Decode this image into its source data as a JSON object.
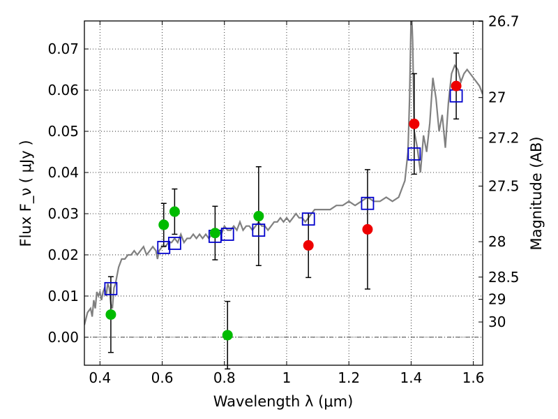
{
  "chart_data": {
    "type": "scatter",
    "xlabel": "Wavelength  λ (μm)",
    "ylabel": "Flux  F_ν  ( μJy )",
    "ylabel_right": "Magnitude (AB)",
    "xlim": [
      0.35,
      1.63
    ],
    "ylim": [
      -0.0068,
      0.0768
    ],
    "grid": true,
    "x_ticks": [
      0.4,
      0.6,
      0.8,
      1.0,
      1.2,
      1.4,
      1.6
    ],
    "x_tick_labels": [
      "0.4",
      "0.6",
      "0.8",
      "1",
      "1.2",
      "1.4",
      "1.6"
    ],
    "y_ticks": [
      0.0,
      0.01,
      0.02,
      0.03,
      0.04,
      0.05,
      0.06,
      0.07
    ],
    "y_tick_labels": [
      "0.00",
      "0.01",
      "0.02",
      "0.03",
      "0.04",
      "0.05",
      "0.06",
      "0.07"
    ],
    "right_ticks": [
      {
        "label": "26.7",
        "flux": 0.0767
      },
      {
        "label": "27",
        "flux": 0.0582
      },
      {
        "label": "27.2",
        "flux": 0.0484
      },
      {
        "label": "27.5",
        "flux": 0.0367
      },
      {
        "label": "28",
        "flux": 0.0232
      },
      {
        "label": "28.5",
        "flux": 0.0146
      },
      {
        "label": "29",
        "flux": 0.0092
      },
      {
        "label": "30",
        "flux": 0.0037
      }
    ],
    "colors": {
      "model": "#808080",
      "template_boxes": "#0000cc",
      "green_points": "#00bb00",
      "red_points": "#ee0000",
      "errorbars": "#000000"
    },
    "series": [
      {
        "key": "model_spectrum",
        "style": "line",
        "x": [
          0.35,
          0.36,
          0.37,
          0.375,
          0.38,
          0.385,
          0.39,
          0.395,
          0.4,
          0.405,
          0.41,
          0.415,
          0.42,
          0.425,
          0.43,
          0.435,
          0.44,
          0.445,
          0.45,
          0.455,
          0.46,
          0.47,
          0.48,
          0.49,
          0.5,
          0.51,
          0.52,
          0.53,
          0.54,
          0.55,
          0.56,
          0.57,
          0.58,
          0.585,
          0.59,
          0.6,
          0.61,
          0.62,
          0.63,
          0.64,
          0.65,
          0.66,
          0.67,
          0.68,
          0.69,
          0.7,
          0.71,
          0.72,
          0.73,
          0.74,
          0.75,
          0.76,
          0.77,
          0.78,
          0.79,
          0.8,
          0.81,
          0.82,
          0.83,
          0.84,
          0.85,
          0.86,
          0.87,
          0.88,
          0.89,
          0.9,
          0.91,
          0.92,
          0.93,
          0.94,
          0.95,
          0.96,
          0.97,
          0.98,
          0.99,
          1.0,
          1.01,
          1.02,
          1.03,
          1.04,
          1.05,
          1.06,
          1.07,
          1.08,
          1.09,
          1.1,
          1.12,
          1.14,
          1.16,
          1.18,
          1.2,
          1.22,
          1.24,
          1.26,
          1.28,
          1.3,
          1.32,
          1.34,
          1.36,
          1.37,
          1.38,
          1.39,
          1.395,
          1.4,
          1.402,
          1.405,
          1.41,
          1.415,
          1.42,
          1.43,
          1.44,
          1.45,
          1.46,
          1.47,
          1.48,
          1.49,
          1.5,
          1.51,
          1.52,
          1.53,
          1.54,
          1.55,
          1.56,
          1.57,
          1.58,
          1.59,
          1.6,
          1.61,
          1.62,
          1.63
        ],
        "y": [
          0.003,
          0.006,
          0.007,
          0.005,
          0.009,
          0.007,
          0.011,
          0.01,
          0.011,
          0.009,
          0.011,
          0.012,
          0.01,
          0.013,
          0.012,
          0.008,
          0.007,
          0.012,
          0.013,
          0.015,
          0.017,
          0.019,
          0.019,
          0.02,
          0.02,
          0.021,
          0.02,
          0.021,
          0.022,
          0.02,
          0.021,
          0.022,
          0.021,
          0.019,
          0.021,
          0.022,
          0.022,
          0.023,
          0.023,
          0.024,
          0.023,
          0.025,
          0.023,
          0.024,
          0.024,
          0.025,
          0.024,
          0.025,
          0.024,
          0.025,
          0.024,
          0.025,
          0.025,
          0.026,
          0.025,
          0.027,
          0.026,
          0.026,
          0.027,
          0.026,
          0.028,
          0.026,
          0.027,
          0.027,
          0.026,
          0.027,
          0.028,
          0.027,
          0.027,
          0.026,
          0.027,
          0.028,
          0.028,
          0.029,
          0.028,
          0.029,
          0.028,
          0.029,
          0.03,
          0.029,
          0.029,
          0.028,
          0.029,
          0.03,
          0.031,
          0.031,
          0.031,
          0.031,
          0.032,
          0.032,
          0.033,
          0.032,
          0.033,
          0.034,
          0.033,
          0.033,
          0.034,
          0.033,
          0.034,
          0.036,
          0.038,
          0.045,
          0.058,
          0.078,
          0.078,
          0.072,
          0.05,
          0.048,
          0.046,
          0.04,
          0.049,
          0.045,
          0.052,
          0.063,
          0.058,
          0.05,
          0.054,
          0.046,
          0.057,
          0.064,
          0.066,
          0.065,
          0.062,
          0.064,
          0.065,
          0.064,
          0.063,
          0.062,
          0.061,
          0.059
        ]
      },
      {
        "key": "template_boxes",
        "style": "open-square",
        "x": [
          0.435,
          0.605,
          0.64,
          0.77,
          0.81,
          0.91,
          1.07,
          1.26,
          1.41,
          1.545
        ],
        "y": [
          0.0118,
          0.0218,
          0.0228,
          0.0245,
          0.025,
          0.026,
          0.0287,
          0.0325,
          0.0445,
          0.0586
        ]
      },
      {
        "key": "green_points",
        "style": "filled-circle",
        "x": [
          0.435,
          0.605,
          0.64,
          0.77,
          0.81,
          0.91
        ],
        "y": [
          0.0055,
          0.0273,
          0.0305,
          0.0253,
          0.0005,
          0.0294
        ],
        "err": [
          0.0092,
          0.0052,
          0.0055,
          0.0065,
          0.0082,
          0.012
        ]
      },
      {
        "key": "red_points",
        "style": "filled-circle",
        "x": [
          1.07,
          1.26,
          1.41,
          1.545
        ],
        "y": [
          0.0223,
          0.0262,
          0.0518,
          0.061
        ],
        "err": [
          0.0078,
          0.0145,
          0.0122,
          0.008
        ]
      }
    ]
  }
}
